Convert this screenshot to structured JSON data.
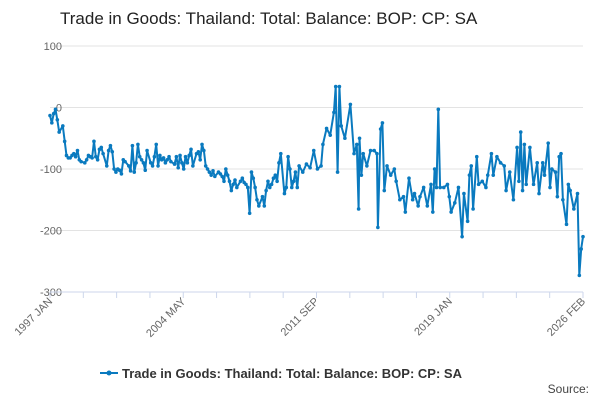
{
  "chart_data": {
    "type": "line",
    "title": "Trade in Goods: Thailand: Total: Balance: BOP: CP: SA",
    "xlabel": "",
    "ylabel": "",
    "xlim": [
      1997.0,
      2026.1
    ],
    "ylim": [
      -300,
      100
    ],
    "yticks": [
      100,
      0,
      -100,
      -200,
      -300
    ],
    "ytick_labels": [
      "100",
      "0",
      "-100",
      "-200",
      "-300"
    ],
    "xtick_labels": [
      "1997 JAN",
      "2004 MAY",
      "2011 SEP",
      "2019 JAN",
      "2026 FEB"
    ],
    "grid": true,
    "legend": {
      "position": "bottom",
      "entries": [
        "Trade in Goods: Thailand: Total: Balance: BOP: CP: SA"
      ]
    },
    "source_label": "Source:",
    "color": "#0a7abf",
    "series": [
      {
        "name": "Trade in Goods: Thailand: Total: Balance: BOP: CP: SA",
        "points": [
          [
            1997.0,
            -13
          ],
          [
            1997.1,
            -25
          ],
          [
            1997.2,
            -10
          ],
          [
            1997.3,
            -3
          ],
          [
            1997.4,
            -20
          ],
          [
            1997.5,
            -40
          ],
          [
            1997.7,
            -30
          ],
          [
            1997.8,
            -55
          ],
          [
            1997.9,
            -78
          ],
          [
            1998.0,
            -82
          ],
          [
            1998.1,
            -82
          ],
          [
            1998.2,
            -78
          ],
          [
            1998.3,
            -75
          ],
          [
            1998.4,
            -80
          ],
          [
            1998.5,
            -70
          ],
          [
            1998.6,
            -85
          ],
          [
            1998.7,
            -88
          ],
          [
            1998.9,
            -90
          ],
          [
            1999.0,
            -85
          ],
          [
            1999.1,
            -78
          ],
          [
            1999.2,
            -80
          ],
          [
            1999.3,
            -82
          ],
          [
            1999.4,
            -55
          ],
          [
            1999.5,
            -80
          ],
          [
            1999.6,
            -85
          ],
          [
            1999.7,
            -68
          ],
          [
            1999.8,
            -65
          ],
          [
            1999.9,
            -75
          ],
          [
            2000.1,
            -95
          ],
          [
            2000.2,
            -70
          ],
          [
            2000.3,
            -62
          ],
          [
            2000.4,
            -72
          ],
          [
            2000.5,
            -100
          ],
          [
            2000.6,
            -105
          ],
          [
            2000.7,
            -100
          ],
          [
            2000.8,
            -102
          ],
          [
            2000.9,
            -108
          ],
          [
            2001.0,
            -85
          ],
          [
            2001.1,
            -88
          ],
          [
            2001.3,
            -95
          ],
          [
            2001.4,
            -103
          ],
          [
            2001.5,
            -62
          ],
          [
            2001.6,
            -105
          ],
          [
            2001.7,
            -90
          ],
          [
            2001.8,
            -60
          ],
          [
            2001.9,
            -80
          ],
          [
            2002.0,
            -85
          ],
          [
            2002.1,
            -90
          ],
          [
            2002.2,
            -102
          ],
          [
            2002.3,
            -70
          ],
          [
            2002.5,
            -90
          ],
          [
            2002.6,
            -95
          ],
          [
            2002.7,
            -80
          ],
          [
            2002.8,
            -60
          ],
          [
            2002.9,
            -95
          ],
          [
            2003.0,
            -78
          ],
          [
            2003.1,
            -85
          ],
          [
            2003.2,
            -82
          ],
          [
            2003.3,
            -90
          ],
          [
            2003.4,
            -85
          ],
          [
            2003.5,
            -80
          ],
          [
            2003.6,
            -88
          ],
          [
            2003.8,
            -92
          ],
          [
            2003.9,
            -80
          ],
          [
            2004.0,
            -98
          ],
          [
            2004.1,
            -78
          ],
          [
            2004.2,
            -90
          ],
          [
            2004.3,
            -100
          ],
          [
            2004.4,
            -80
          ],
          [
            2004.5,
            -90
          ],
          [
            2004.6,
            -78
          ],
          [
            2004.7,
            -68
          ],
          [
            2004.8,
            -95
          ],
          [
            2005.0,
            -75
          ],
          [
            2005.1,
            -72
          ],
          [
            2005.2,
            -85
          ],
          [
            2005.3,
            -60
          ],
          [
            2005.4,
            -70
          ],
          [
            2005.5,
            -95
          ],
          [
            2005.6,
            -100
          ],
          [
            2005.7,
            -105
          ],
          [
            2005.8,
            -110
          ],
          [
            2005.9,
            -103
          ],
          [
            2006.0,
            -112
          ],
          [
            2006.2,
            -105
          ],
          [
            2006.3,
            -108
          ],
          [
            2006.4,
            -112
          ],
          [
            2006.5,
            -120
          ],
          [
            2006.6,
            -100
          ],
          [
            2006.7,
            -110
          ],
          [
            2006.8,
            -120
          ],
          [
            2006.9,
            -135
          ],
          [
            2007.0,
            -125
          ],
          [
            2007.1,
            -118
          ],
          [
            2007.2,
            -130
          ],
          [
            2007.4,
            -120
          ],
          [
            2007.5,
            -115
          ],
          [
            2007.6,
            -122
          ],
          [
            2007.7,
            -125
          ],
          [
            2007.8,
            -130
          ],
          [
            2007.9,
            -172
          ],
          [
            2008.0,
            -105
          ],
          [
            2008.1,
            -115
          ],
          [
            2008.2,
            -130
          ],
          [
            2008.3,
            -150
          ],
          [
            2008.4,
            -160
          ],
          [
            2008.6,
            -145
          ],
          [
            2008.7,
            -160
          ],
          [
            2008.8,
            -135
          ],
          [
            2008.9,
            -120
          ],
          [
            2009.0,
            -130
          ],
          [
            2009.1,
            -125
          ],
          [
            2009.2,
            -115
          ],
          [
            2009.3,
            -110
          ],
          [
            2009.4,
            -120
          ],
          [
            2009.5,
            -90
          ],
          [
            2009.6,
            -75
          ],
          [
            2009.8,
            -140
          ],
          [
            2009.9,
            -130
          ],
          [
            2010.0,
            -80
          ],
          [
            2010.1,
            -100
          ],
          [
            2010.2,
            -130
          ],
          [
            2010.3,
            -120
          ],
          [
            2010.4,
            -105
          ],
          [
            2010.5,
            -130
          ],
          [
            2010.6,
            -95
          ],
          [
            2010.8,
            -105
          ],
          [
            2011.0,
            -92
          ],
          [
            2011.2,
            -98
          ],
          [
            2011.4,
            -70
          ],
          [
            2011.6,
            -100
          ],
          [
            2011.8,
            -95
          ],
          [
            2011.9,
            -60
          ],
          [
            2012.1,
            -34
          ],
          [
            2012.3,
            -45
          ],
          [
            2012.5,
            -8
          ],
          [
            2012.6,
            34
          ],
          [
            2012.7,
            -105
          ],
          [
            2012.8,
            34
          ],
          [
            2012.9,
            -30
          ],
          [
            2013.1,
            -50
          ],
          [
            2013.4,
            5
          ],
          [
            2013.6,
            -75
          ],
          [
            2013.75,
            -60
          ],
          [
            2013.85,
            -165
          ],
          [
            2013.9,
            -50
          ],
          [
            2014.0,
            -110
          ],
          [
            2014.1,
            -75
          ],
          [
            2014.3,
            -95
          ],
          [
            2014.5,
            -70
          ],
          [
            2014.7,
            -70
          ],
          [
            2014.85,
            -75
          ],
          [
            2014.9,
            -195
          ],
          [
            2015.05,
            -35
          ],
          [
            2015.15,
            -25
          ],
          [
            2015.25,
            -135
          ],
          [
            2015.4,
            -95
          ],
          [
            2015.6,
            -110
          ],
          [
            2015.8,
            -100
          ],
          [
            2015.9,
            -120
          ],
          [
            2016.1,
            -150
          ],
          [
            2016.3,
            -145
          ],
          [
            2016.4,
            -170
          ],
          [
            2016.6,
            -115
          ],
          [
            2016.8,
            -150
          ],
          [
            2016.9,
            -140
          ],
          [
            2017.1,
            -160
          ],
          [
            2017.2,
            -145
          ],
          [
            2017.4,
            -130
          ],
          [
            2017.6,
            -160
          ],
          [
            2017.8,
            -125
          ],
          [
            2017.9,
            -170
          ],
          [
            2018.0,
            -100
          ],
          [
            2018.1,
            -130
          ],
          [
            2018.2,
            -3
          ],
          [
            2018.3,
            -130
          ],
          [
            2018.5,
            -130
          ],
          [
            2018.7,
            -125
          ],
          [
            2018.8,
            -145
          ],
          [
            2018.9,
            -170
          ],
          [
            2019.1,
            -155
          ],
          [
            2019.3,
            -130
          ],
          [
            2019.5,
            -210
          ],
          [
            2019.6,
            -140
          ],
          [
            2019.8,
            -185
          ],
          [
            2019.9,
            -110
          ],
          [
            2020.0,
            -95
          ],
          [
            2020.1,
            -165
          ],
          [
            2020.3,
            -80
          ],
          [
            2020.4,
            -125
          ],
          [
            2020.6,
            -120
          ],
          [
            2020.8,
            -130
          ],
          [
            2020.9,
            -110
          ],
          [
            2021.1,
            -75
          ],
          [
            2021.2,
            -110
          ],
          [
            2021.4,
            -80
          ],
          [
            2021.6,
            -90
          ],
          [
            2021.8,
            -95
          ],
          [
            2021.9,
            -135
          ],
          [
            2022.1,
            -105
          ],
          [
            2022.3,
            -150
          ],
          [
            2022.5,
            -65
          ],
          [
            2022.6,
            -120
          ],
          [
            2022.7,
            -40
          ],
          [
            2022.8,
            -135
          ],
          [
            2022.9,
            -60
          ],
          [
            2023.0,
            -125
          ],
          [
            2023.2,
            -65
          ],
          [
            2023.4,
            -125
          ],
          [
            2023.6,
            -90
          ],
          [
            2023.7,
            -140
          ],
          [
            2023.9,
            -90
          ],
          [
            2024.0,
            -110
          ],
          [
            2024.2,
            -58
          ],
          [
            2024.3,
            -130
          ],
          [
            2024.4,
            -100
          ],
          [
            2024.6,
            -105
          ],
          [
            2024.7,
            -145
          ],
          [
            2024.8,
            -80
          ],
          [
            2024.9,
            -75
          ],
          [
            2025.0,
            -150
          ],
          [
            2025.2,
            -190
          ],
          [
            2025.3,
            -125
          ],
          [
            2025.4,
            -135
          ],
          [
            2025.6,
            -165
          ],
          [
            2025.8,
            -140
          ],
          [
            2025.9,
            -273
          ],
          [
            2026.0,
            -230
          ],
          [
            2026.1,
            -210
          ]
        ]
      }
    ]
  }
}
